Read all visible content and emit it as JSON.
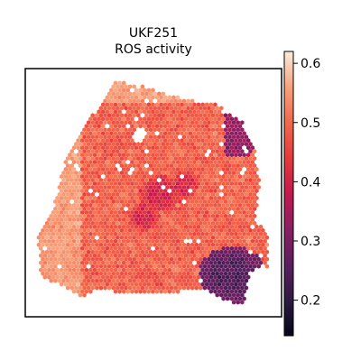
{
  "chart_data": {
    "type": "heatmap",
    "subtype": "spatial-hexbin",
    "title_line1": "UKF251",
    "title_line2": "ROS activity",
    "xlabel": "",
    "ylabel": "",
    "grid": false,
    "colormap": "rocket",
    "colorbar": {
      "vmin": 0.14,
      "vmax": 0.62,
      "ticks": [
        0.2,
        0.3,
        0.4,
        0.5,
        0.6
      ],
      "tick_labels": [
        "0.2",
        "0.3",
        "0.4",
        "0.5",
        "0.6"
      ],
      "placement": "right"
    },
    "regions": [
      {
        "name": "tissue-main",
        "typical_value": 0.49,
        "spread": 0.05
      },
      {
        "name": "center-cluster",
        "typical_value": 0.4,
        "spread": 0.04
      },
      {
        "name": "upper-left-edge",
        "typical_value": 0.55,
        "spread": 0.03
      },
      {
        "name": "right-upper-rim",
        "typical_value": 0.33,
        "spread": 0.05
      },
      {
        "name": "lower-right-lobe",
        "typical_value": 0.24,
        "spread": 0.04
      }
    ],
    "value_range": [
      0.16,
      0.61
    ]
  }
}
